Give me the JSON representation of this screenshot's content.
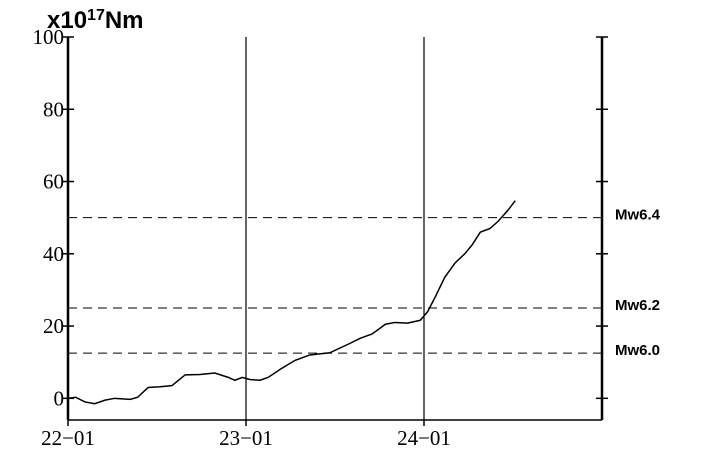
{
  "chart_data": {
    "type": "line",
    "title": {
      "base": "x10",
      "exponent": "17",
      "unit": "Nm"
    },
    "x": [
      0,
      1,
      2.3,
      3.6,
      5,
      6.3,
      8.4,
      9.4,
      10.8,
      12.4,
      14,
      15.8,
      17.8,
      19.8,
      21.6,
      22.5,
      23.5,
      24.5,
      25.9,
      27,
      28.6,
      30.6,
      32.6,
      35.3,
      37.8,
      39.4,
      41,
      42.8,
      44.1,
      45.8,
      47.5,
      48.5,
      49.5,
      50.8,
      52.2,
      53.5,
      54.5,
      55.6,
      56.9,
      58,
      59.3,
      60.3
    ],
    "series": [
      {
        "color": "#000000",
        "values": [
          0,
          0.3,
          -1,
          -1.5,
          -0.5,
          0,
          -0.3,
          0.3,
          3,
          3.2,
          3.5,
          6.5,
          6.6,
          7,
          5.8,
          5,
          5.8,
          5.2,
          5,
          5.8,
          8,
          10.5,
          12,
          12.6,
          15,
          16.6,
          17.8,
          20.5,
          21,
          20.8,
          21.6,
          24,
          28,
          33.5,
          37.5,
          40,
          42.5,
          46,
          47,
          49,
          52,
          54.7
        ]
      }
    ],
    "xlim": [
      0,
      72
    ],
    "xticks": [
      {
        "value": 0,
        "label": "22−01"
      },
      {
        "value": 24,
        "label": "23−01"
      },
      {
        "value": 48,
        "label": "24−01"
      }
    ],
    "ylim": [
      -6,
      100
    ],
    "yticks": [
      0,
      20,
      40,
      60,
      80,
      100
    ],
    "reference_lines": [
      {
        "value": 50,
        "label": "Mw6.4"
      },
      {
        "value": 25,
        "label": "Mw6.2"
      },
      {
        "value": 12.5,
        "label": "Mw6.0"
      }
    ]
  }
}
